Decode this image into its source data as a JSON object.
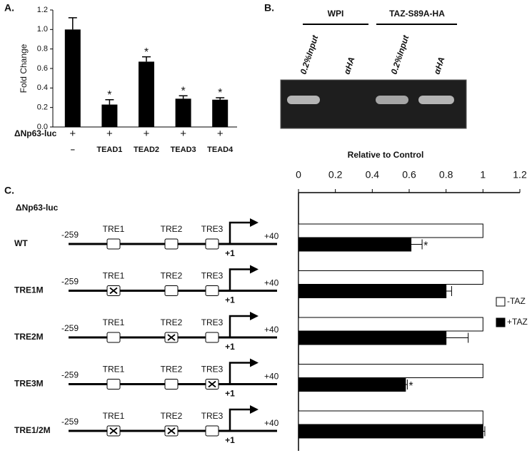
{
  "panel_labels": [
    "A.",
    "B.",
    "C."
  ],
  "chart_data": [
    {
      "type": "bar",
      "y_label": "Fold Change",
      "row_label": "ΔNp63-luc",
      "plus_labels": [
        "+",
        "+",
        "+",
        "+",
        "+"
      ],
      "categories": [
        "–",
        "TEAD1",
        "TEAD2",
        "TEAD3",
        "TEAD4"
      ],
      "values": [
        1.0,
        0.23,
        0.67,
        0.29,
        0.28
      ],
      "errors": [
        0.12,
        0.05,
        0.05,
        0.03,
        0.02
      ],
      "significance": [
        null,
        "*",
        "*",
        "*",
        "*"
      ],
      "color": "#000000",
      "ylim": [
        0,
        1.2
      ],
      "yticks": [
        {
          "value": 0,
          "label": "0.0"
        },
        0.2,
        0.4,
        0.6,
        0.8,
        {
          "value": 1,
          "label": "1.0"
        },
        1.2
      ]
    },
    {
      "type": "hbar",
      "title": "Relative to Control",
      "categories": [
        "WT",
        "TRE1M",
        "TRE2M",
        "TRE3M",
        "TRE1/2M"
      ],
      "series": [
        {
          "name": "-TAZ",
          "color": "#ffffff",
          "values": [
            1,
            1,
            1,
            1,
            1
          ]
        },
        {
          "name": "+TAZ",
          "color": "#000000",
          "values": [
            0.61,
            0.8,
            0.8,
            0.58,
            1.0
          ],
          "errors": [
            0.06,
            0.03,
            0.12,
            0.01,
            0.01
          ],
          "significance": [
            "*",
            null,
            null,
            "*",
            null
          ]
        }
      ],
      "xlim": [
        0,
        1.2
      ],
      "xticks": [
        0,
        0.2,
        0.4,
        0.6,
        0.8,
        1,
        1.2
      ]
    }
  ],
  "gel": {
    "groups": [
      "WPI",
      "TAZ-S89A-HA"
    ],
    "lanes": [
      "0.2%Input",
      "αHA",
      "0.2%Input",
      "αHA"
    ]
  },
  "diagram": {
    "title": "ΔNp63-luc",
    "start": "-259",
    "end": "+40",
    "tss": "+1",
    "elements": [
      "TRE1",
      "TRE2",
      "TRE3"
    ],
    "mutated": [
      [
        false,
        false,
        false
      ],
      [
        true,
        false,
        false
      ],
      [
        false,
        true,
        false
      ],
      [
        false,
        false,
        true
      ],
      [
        true,
        true,
        false
      ]
    ]
  }
}
